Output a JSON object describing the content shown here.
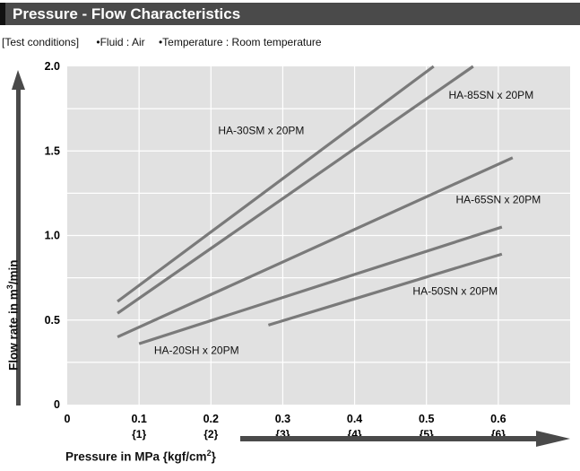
{
  "header": {
    "title": "Pressure - Flow Characteristics"
  },
  "conditions": {
    "label": "[Test conditions]",
    "fluid": "•Fluid : Air",
    "temperature": "•Temperature : Room temperature"
  },
  "colors": {
    "background": "#e1e1e1",
    "line": "#7a7a7a",
    "grid": "#ffffff",
    "arrow": "#4a4a4a"
  },
  "chart_data": {
    "type": "line",
    "title": "Pressure - Flow Characteristics",
    "xlabel": "Pressure in MPa {kgf/cm",
    "xlabel_sup": "2",
    "xlabel_end": "}",
    "ylabel": "Flow rate in m",
    "ylabel_sup": "3",
    "ylabel_end": "/min",
    "xlim": [
      0,
      0.7
    ],
    "ylim": [
      0,
      2.0
    ],
    "grid": true,
    "x_ticks": [
      {
        "value": 0,
        "label": "0",
        "sub": ""
      },
      {
        "value": 0.1,
        "label": "0.1",
        "sub": "{1}"
      },
      {
        "value": 0.2,
        "label": "0.2",
        "sub": "{2}"
      },
      {
        "value": 0.3,
        "label": "0.3",
        "sub": "{3}"
      },
      {
        "value": 0.4,
        "label": "0.4",
        "sub": "{4}"
      },
      {
        "value": 0.5,
        "label": "0.5",
        "sub": "{5}"
      },
      {
        "value": 0.6,
        "label": "0.6",
        "sub": "{6}"
      }
    ],
    "y_ticks": [
      {
        "value": 0,
        "label": "0"
      },
      {
        "value": 0.5,
        "label": "0.5"
      },
      {
        "value": 1.0,
        "label": "1.0"
      },
      {
        "value": 1.5,
        "label": "1.5"
      },
      {
        "value": 2.0,
        "label": "2.0"
      }
    ],
    "series": [
      {
        "name": "HA-30SM x 20PM",
        "x": [
          0.07,
          0.51
        ],
        "y": [
          0.61,
          2.0
        ],
        "label_at": [
          0.27,
          1.6
        ]
      },
      {
        "name": "HA-85SN x 20PM",
        "x": [
          0.07,
          0.565
        ],
        "y": [
          0.54,
          2.0
        ],
        "label_at": [
          0.59,
          1.81
        ]
      },
      {
        "name": "HA-65SN x 20PM",
        "x": [
          0.07,
          0.62
        ],
        "y": [
          0.4,
          1.46
        ],
        "label_at": [
          0.6,
          1.19
        ]
      },
      {
        "name": "HA-20SH x 20PM",
        "x": [
          0.1,
          0.605
        ],
        "y": [
          0.36,
          1.05
        ],
        "label_at": [
          0.18,
          0.3
        ]
      },
      {
        "name": "HA-50SN x 20PM",
        "x": [
          0.28,
          0.605
        ],
        "y": [
          0.47,
          0.89
        ],
        "label_at": [
          0.54,
          0.65
        ]
      }
    ]
  }
}
